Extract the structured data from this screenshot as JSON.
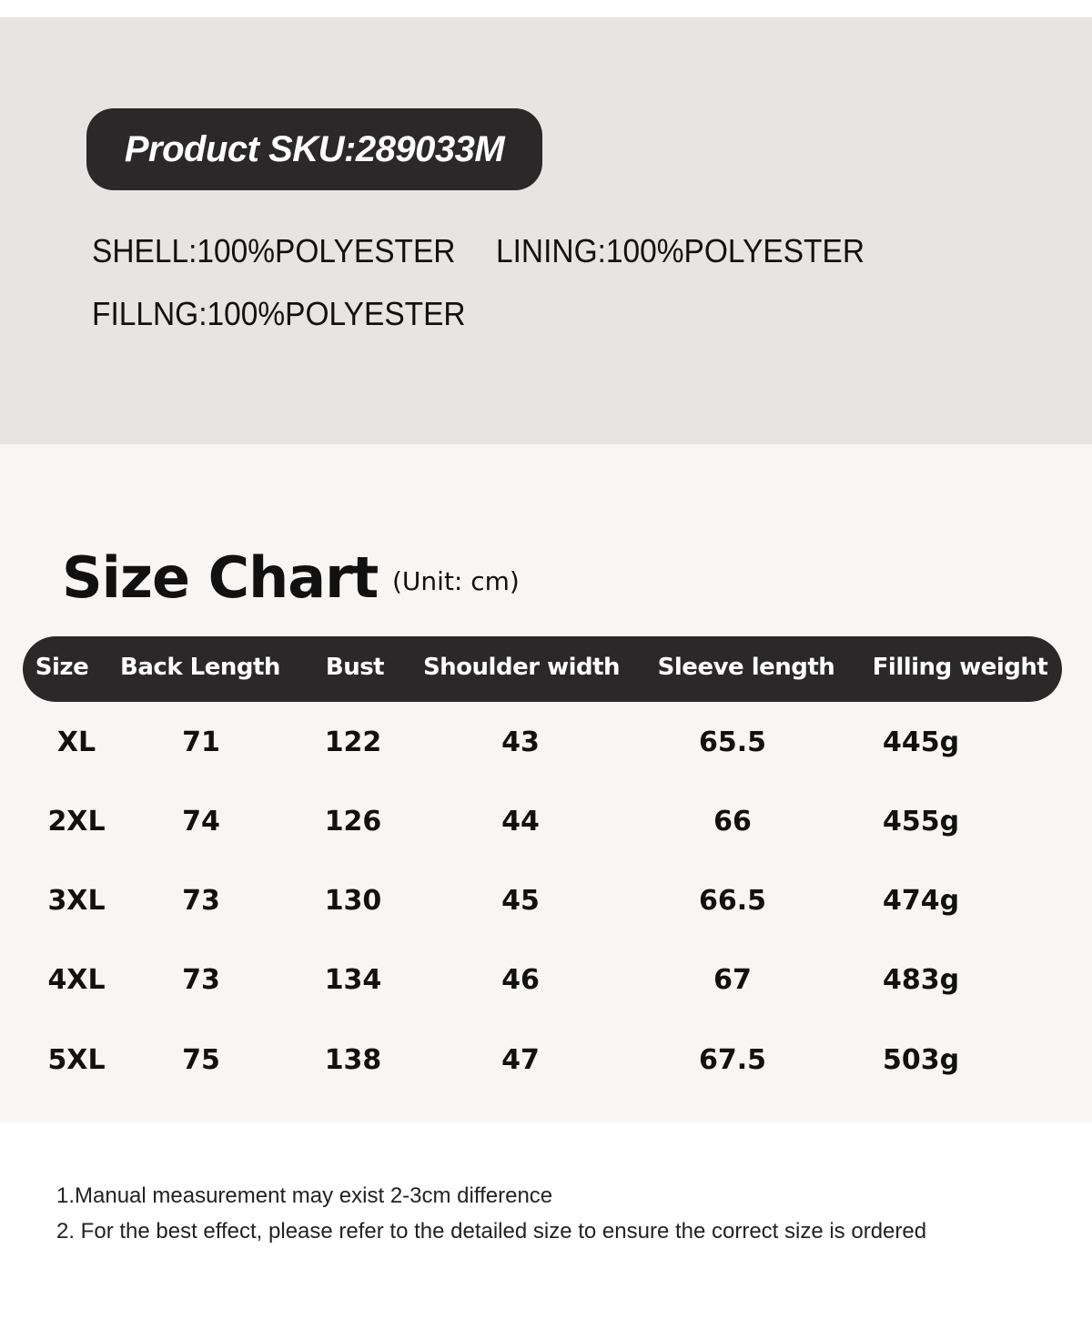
{
  "product": {
    "sku_label": "Product SKU:289033M"
  },
  "materials": [
    {
      "label": "SHELL:",
      "value": "100%POLYESTER"
    },
    {
      "label": "LINING:",
      "value": "100%POLYESTER"
    },
    {
      "label": "FILLNG:",
      "value": "100%POLYESTER"
    }
  ],
  "size_chart": {
    "title": "Size Chart",
    "unit": "(Unit: cm)",
    "headers": [
      "Size",
      "Back Length",
      "Bust",
      "Shoulder width",
      "Sleeve length",
      "Filling weight"
    ],
    "rows": [
      [
        "XL",
        "71",
        "122",
        "43",
        "65.5",
        "445g"
      ],
      [
        "2XL",
        "74",
        "126",
        "44",
        "66",
        "455g"
      ],
      [
        "3XL",
        "73",
        "130",
        "45",
        "66.5",
        "474g"
      ],
      [
        "4XL",
        "73",
        "134",
        "46",
        "67",
        "483g"
      ],
      [
        "5XL",
        "75",
        "138",
        "47",
        "67.5",
        "503g"
      ]
    ]
  },
  "notes": [
    "1.Manual measurement may exist 2-3cm difference",
    "2. For the best effect, please refer to the detailed size to ensure the correct size is ordered"
  ],
  "colors": {
    "header_bg": "#2a2829",
    "top_bg": "#e6e5e3",
    "chart_bg": "#f8f6f4"
  }
}
